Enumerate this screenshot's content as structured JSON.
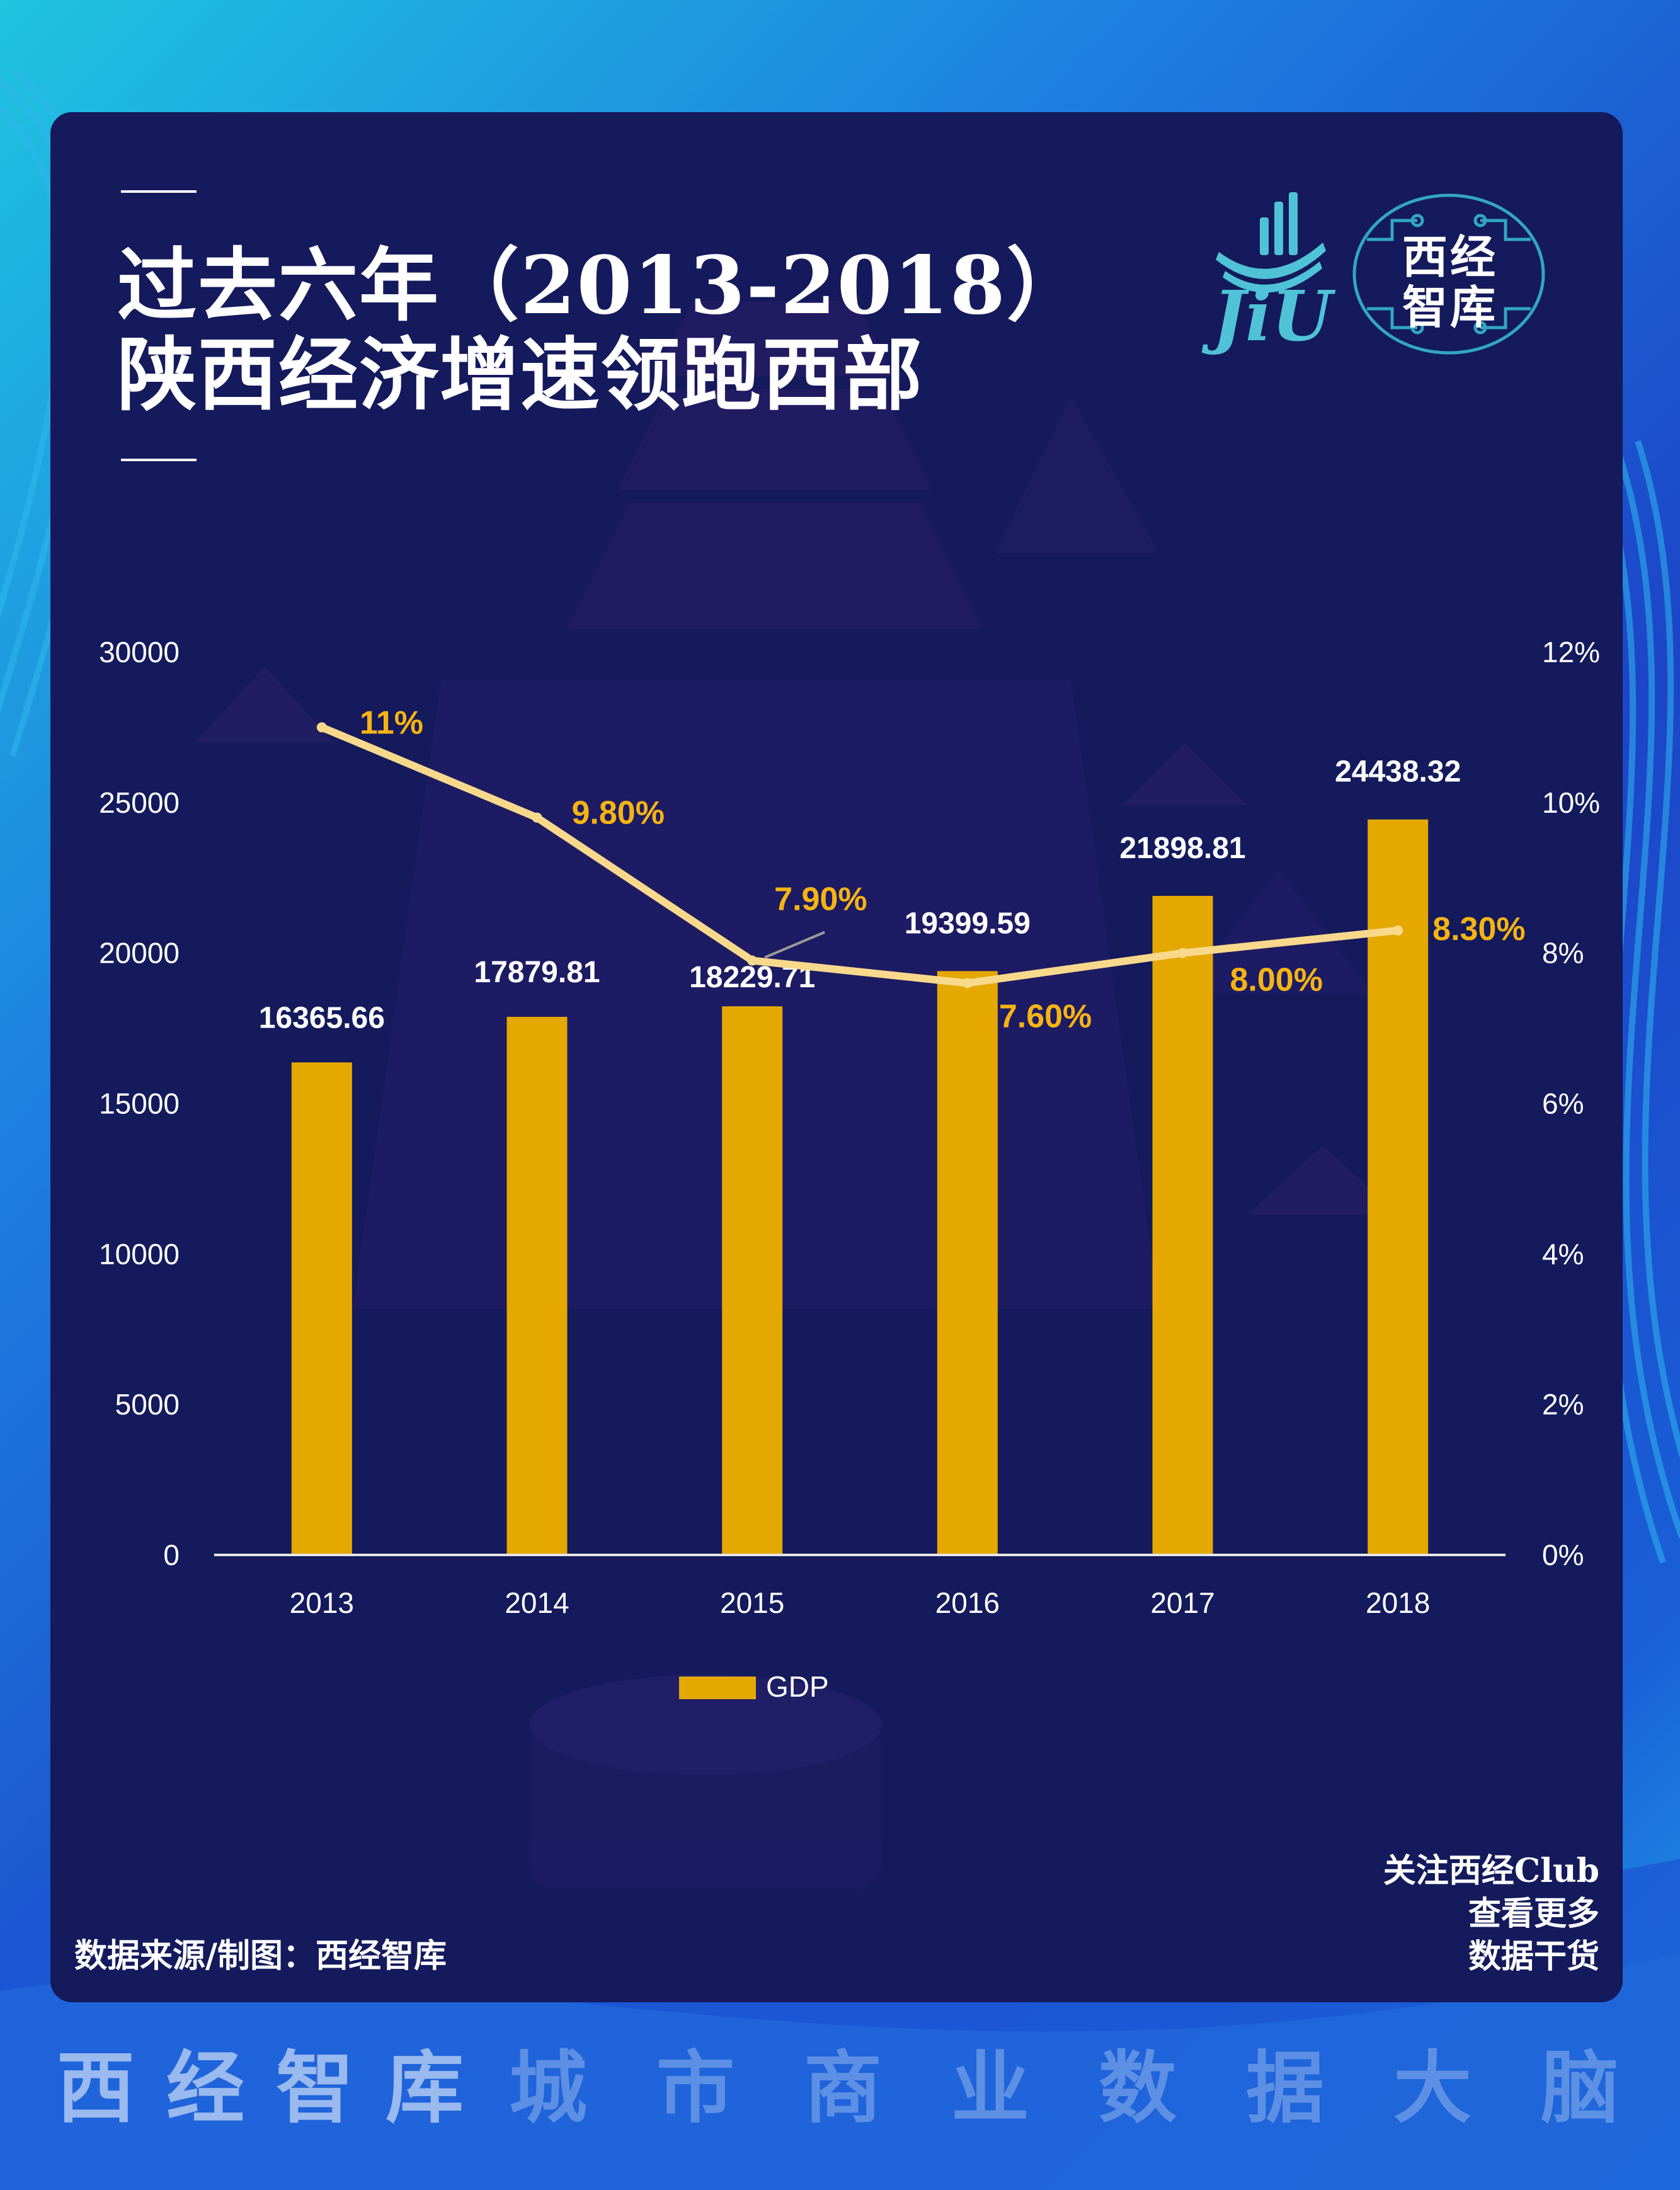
{
  "title": {
    "line1": "过去六年（2013-2018）",
    "line2": "陕西经济增速领跑西部"
  },
  "logo": {
    "jiu_text": "JiU",
    "seal_line1": "西经",
    "seal_line2": "智库"
  },
  "chart_data": {
    "type": "bar",
    "categories": [
      "2013",
      "2014",
      "2015",
      "2016",
      "2017",
      "2018"
    ],
    "series": [
      {
        "name": "GDP",
        "type": "bar",
        "axis": "left",
        "values": [
          16365.66,
          17879.81,
          18229.71,
          19399.59,
          21898.81,
          24438.32
        ],
        "labels": [
          "16365.66",
          "17879.81",
          "18229.71",
          "19399.59",
          "21898.81",
          "24438.32"
        ],
        "color": "#e4a800"
      },
      {
        "type": "line",
        "axis": "right",
        "values": [
          11.0,
          9.8,
          7.9,
          7.6,
          8.0,
          8.3
        ],
        "labels": [
          "11%",
          "9.80%",
          "7.90%",
          "7.60%",
          "8.00%",
          "8.30%"
        ],
        "color": "#f8d98c",
        "label_color": "#f5b414"
      }
    ],
    "y_left": {
      "lim": [
        0,
        30000
      ],
      "ticks": [
        "0",
        "5000",
        "10000",
        "15000",
        "20000",
        "25000",
        "30000"
      ]
    },
    "y_right": {
      "lim": [
        0,
        12
      ],
      "ticks": [
        "0%",
        "2%",
        "4%",
        "6%",
        "8%",
        "10%",
        "12%"
      ]
    },
    "legend": {
      "position": "bottom",
      "label": "GDP"
    },
    "grid": false
  },
  "source": "数据来源/制图：西经智库",
  "follow": [
    "关注西经Club",
    "查看更多",
    "数据干货"
  ],
  "footer": {
    "strong": [
      "西",
      "经",
      "智",
      "库"
    ],
    "weak": [
      "城",
      "市",
      "商",
      "业",
      "数",
      "据",
      "大",
      "脑"
    ]
  },
  "colors": {
    "card": "#141a5c",
    "bar": "#e4a800",
    "line": "#f8d98c",
    "pct_label": "#f5b414"
  }
}
